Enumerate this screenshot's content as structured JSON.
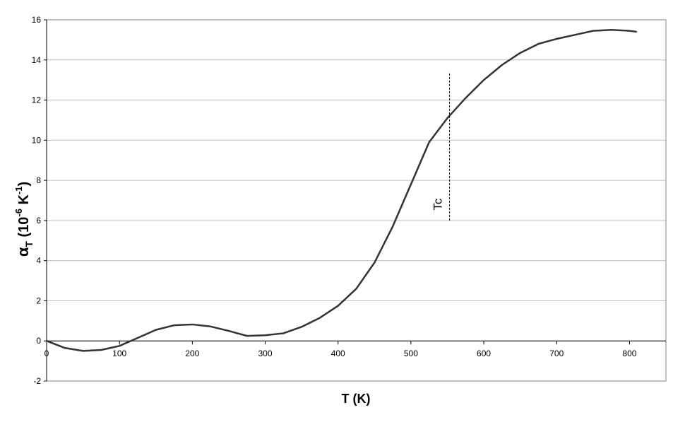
{
  "chart_data": {
    "type": "line",
    "xlabel": "T (K)",
    "ylabel": [
      "α",
      "T",
      " (10",
      "-6",
      " K",
      "-1",
      ")"
    ],
    "x": [
      0,
      25,
      50,
      75,
      100,
      125,
      150,
      175,
      200,
      225,
      250,
      275,
      300,
      325,
      350,
      375,
      400,
      425,
      450,
      475,
      500,
      525,
      550,
      575,
      600,
      625,
      650,
      675,
      700,
      725,
      750,
      775,
      800,
      810
    ],
    "series": [
      {
        "name": "αT",
        "color": "#333333",
        "values": [
          0,
          -0.35,
          -0.5,
          -0.45,
          -0.25,
          0.15,
          0.55,
          0.78,
          0.82,
          0.72,
          0.5,
          0.25,
          0.28,
          0.38,
          0.7,
          1.15,
          1.75,
          2.6,
          3.9,
          5.7,
          7.8,
          9.9,
          11.1,
          12.1,
          13.0,
          13.75,
          14.35,
          14.8,
          15.05,
          15.25,
          15.45,
          15.5,
          15.45,
          15.4
        ]
      }
    ],
    "xlim": [
      0,
      850
    ],
    "xticks": [
      0,
      100,
      200,
      300,
      400,
      500,
      600,
      700,
      800
    ],
    "ylim": [
      -2,
      16
    ],
    "yticks": [
      -2,
      0,
      2,
      4,
      6,
      8,
      10,
      12,
      14,
      16
    ],
    "grid": true,
    "annotation": {
      "text": "Tc",
      "x": 553,
      "y": [
        6,
        13.4
      ]
    }
  }
}
